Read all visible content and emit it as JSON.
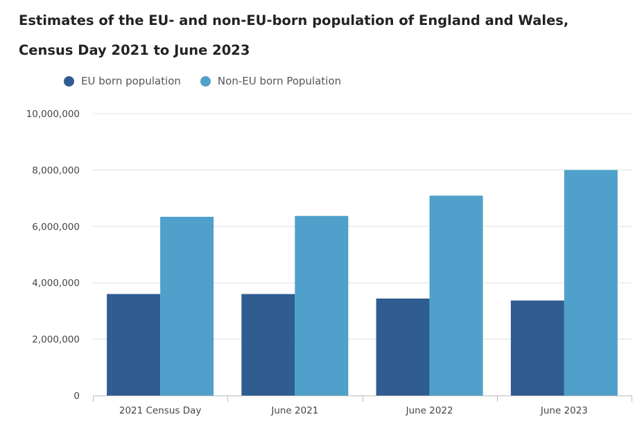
{
  "chart_data": {
    "type": "bar",
    "title": "Estimates of the EU- and non-EU-born population of England and Wales,",
    "subtitle": "Census Day 2021 to June 2023",
    "categories": [
      "2021 Census Day",
      "June 2021",
      "June 2022",
      "June 2023"
    ],
    "series": [
      {
        "name": "EU born population",
        "color": "#2f5d91",
        "values": [
          3600000,
          3600000,
          3440000,
          3370000
        ]
      },
      {
        "name": "Non-EU born Population",
        "color": "#4fa0ca",
        "values": [
          6340000,
          6370000,
          7090000,
          8000000
        ]
      }
    ],
    "ylim": [
      0,
      10000000
    ],
    "yticks": [
      0,
      2000000,
      4000000,
      6000000,
      8000000,
      10000000
    ],
    "ytick_labels": [
      "0",
      "2,000,000",
      "4,000,000",
      "6,000,000",
      "8,000,000",
      "10,000,000"
    ],
    "xlabel": "",
    "ylabel": "",
    "grid": true,
    "legend_position": "top-left"
  }
}
